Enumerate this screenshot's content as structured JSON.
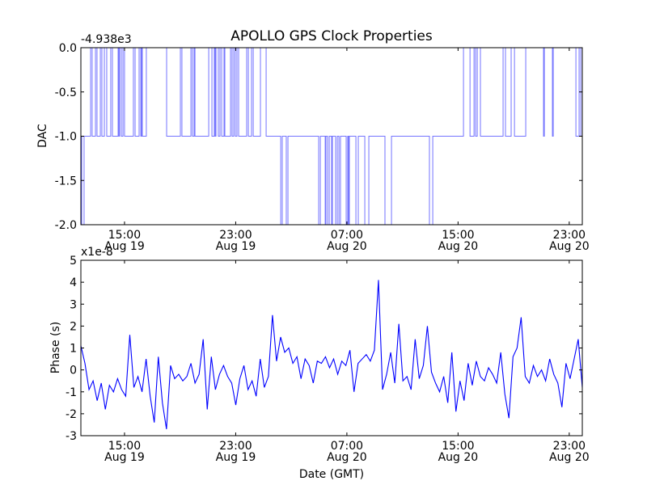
{
  "chart_data": [
    {
      "type": "line",
      "title": "APOLLO GPS Clock Properties",
      "ylabel": "DAC",
      "xlabel": "",
      "offset_label": "-4.938e3",
      "x_units": "hours since 00:00 Aug 19 (GMT)",
      "xlim": [
        11.86,
        47.94
      ],
      "ylim": [
        -2.0,
        0.0
      ],
      "yticks": [
        0.0,
        -0.5,
        -1.0,
        -1.5,
        -2.0
      ],
      "ytick_labels": [
        "0.0",
        "-0.5",
        "-1.0",
        "-1.5",
        "-2.0"
      ],
      "xticks": [
        15,
        23,
        31,
        39,
        47
      ],
      "xtick_labels": [
        [
          "15:00",
          "Aug 19"
        ],
        [
          "23:00",
          "Aug 19"
        ],
        [
          "07:00",
          "Aug 20"
        ],
        [
          "15:00",
          "Aug 20"
        ],
        [
          "23:00",
          "Aug 20"
        ]
      ],
      "color": "#0000ff",
      "step_series": [
        [
          11.86,
          -1
        ],
        [
          11.92,
          -2
        ],
        [
          12.09,
          -1
        ],
        [
          12.56,
          0
        ],
        [
          12.67,
          -1
        ],
        [
          12.91,
          0
        ],
        [
          13.02,
          -1
        ],
        [
          13.26,
          0
        ],
        [
          13.37,
          -1
        ],
        [
          13.55,
          0
        ],
        [
          13.72,
          -1
        ],
        [
          14.01,
          0
        ],
        [
          14.13,
          -1
        ],
        [
          14.54,
          0
        ],
        [
          14.6,
          -1
        ],
        [
          14.65,
          0
        ],
        [
          14.77,
          -1
        ],
        [
          14.89,
          0
        ],
        [
          15.0,
          -1
        ],
        [
          15.64,
          0
        ],
        [
          15.76,
          -1
        ],
        [
          16.05,
          0
        ],
        [
          16.17,
          -1
        ],
        [
          16.23,
          0
        ],
        [
          16.28,
          -1
        ],
        [
          16.57,
          0
        ],
        [
          18.03,
          -1
        ],
        [
          19.02,
          0
        ],
        [
          19.13,
          -1
        ],
        [
          19.78,
          0
        ],
        [
          19.89,
          -1
        ],
        [
          20.01,
          0
        ],
        [
          20.07,
          -1
        ],
        [
          21.06,
          0
        ],
        [
          21.29,
          -1
        ],
        [
          21.46,
          0
        ],
        [
          21.52,
          -1
        ],
        [
          21.58,
          0
        ],
        [
          21.75,
          -1
        ],
        [
          21.87,
          0
        ],
        [
          21.99,
          -1
        ],
        [
          22.16,
          0
        ],
        [
          22.22,
          -1
        ],
        [
          22.63,
          0
        ],
        [
          22.74,
          -1
        ],
        [
          22.86,
          0
        ],
        [
          22.97,
          -1
        ],
        [
          23.09,
          0
        ],
        [
          23.21,
          -1
        ],
        [
          23.79,
          0
        ],
        [
          23.91,
          -1
        ],
        [
          24.14,
          0
        ],
        [
          24.26,
          -1
        ],
        [
          24.78,
          0
        ],
        [
          25.19,
          -1
        ],
        [
          26.24,
          -2
        ],
        [
          26.35,
          -1
        ],
        [
          26.64,
          -2
        ],
        [
          26.76,
          -1
        ],
        [
          28.97,
          -2
        ],
        [
          29.09,
          -1
        ],
        [
          29.44,
          -2
        ],
        [
          29.49,
          -1
        ],
        [
          29.61,
          -2
        ],
        [
          29.73,
          -1
        ],
        [
          29.9,
          -2
        ],
        [
          29.96,
          -1
        ],
        [
          30.19,
          -2
        ],
        [
          30.31,
          -1
        ],
        [
          30.43,
          -2
        ],
        [
          30.54,
          -1
        ],
        [
          30.95,
          -2
        ],
        [
          31.06,
          -1
        ],
        [
          31.12,
          -2
        ],
        [
          31.18,
          -1
        ],
        [
          31.65,
          -2
        ],
        [
          31.82,
          -1
        ],
        [
          32.29,
          -2
        ],
        [
          32.58,
          -1
        ],
        [
          33.74,
          -2
        ],
        [
          34.21,
          -1
        ],
        [
          36.94,
          -2
        ],
        [
          37.18,
          -1
        ],
        [
          39.39,
          0
        ],
        [
          39.86,
          -1
        ],
        [
          40.15,
          0
        ],
        [
          40.26,
          -1
        ],
        [
          40.38,
          0
        ],
        [
          40.61,
          -1
        ],
        [
          42.24,
          0
        ],
        [
          42.41,
          -1
        ],
        [
          42.82,
          0
        ],
        [
          43.06,
          -1
        ],
        [
          43.87,
          0
        ],
        [
          45.15,
          -1
        ],
        [
          45.21,
          0
        ],
        [
          45.79,
          -1
        ],
        [
          45.85,
          0
        ],
        [
          47.48,
          -1
        ],
        [
          47.71,
          0
        ],
        [
          47.83,
          -1
        ],
        [
          47.94,
          -1
        ]
      ]
    },
    {
      "type": "line",
      "title": "",
      "ylabel": "Phase (s)",
      "xlabel": "Date (GMT)",
      "offset_label": "x1e-8",
      "x_units": "hours since 00:00 Aug 19 (GMT)",
      "xlim": [
        11.86,
        47.94
      ],
      "ylim": [
        -3,
        5
      ],
      "yticks": [
        5,
        4,
        3,
        2,
        1,
        0,
        -1,
        -2,
        -3
      ],
      "ytick_labels": [
        "5",
        "4",
        "3",
        "2",
        "1",
        "0",
        "-1",
        "-2",
        "-3"
      ],
      "xticks": [
        15,
        23,
        31,
        39,
        47
      ],
      "xtick_labels": [
        [
          "15:00",
          "Aug 19"
        ],
        [
          "23:00",
          "Aug 19"
        ],
        [
          "07:00",
          "Aug 20"
        ],
        [
          "15:00",
          "Aug 20"
        ],
        [
          "23:00",
          "Aug 20"
        ]
      ],
      "color": "#0000ff",
      "series_x_range": [
        11.86,
        47.94
      ],
      "values": [
        1.1,
        0.3,
        -0.9,
        -0.5,
        -1.4,
        -0.6,
        -1.8,
        -0.7,
        -1.0,
        -0.4,
        -0.9,
        -1.2,
        1.6,
        -0.8,
        -0.3,
        -1.0,
        0.5,
        -1.2,
        -2.4,
        0.6,
        -1.5,
        -2.7,
        0.2,
        -0.4,
        -0.2,
        -0.5,
        -0.3,
        0.3,
        -0.6,
        -0.2,
        1.4,
        -1.8,
        0.6,
        -0.9,
        -0.2,
        0.2,
        -0.3,
        -0.6,
        -1.6,
        -0.4,
        0.2,
        -0.9,
        -0.5,
        -1.2,
        0.5,
        -0.8,
        -0.3,
        2.5,
        0.4,
        1.5,
        0.8,
        1.0,
        0.3,
        0.6,
        -0.4,
        0.5,
        0.2,
        -0.6,
        0.4,
        0.3,
        0.6,
        0.1,
        0.5,
        -0.2,
        0.4,
        0.2,
        0.9,
        -1.0,
        0.3,
        0.5,
        0.7,
        0.4,
        0.9,
        4.1,
        -0.9,
        -0.2,
        0.8,
        -0.6,
        2.1,
        -0.5,
        -0.3,
        -0.9,
        1.4,
        -0.4,
        0.2,
        2.0,
        -0.1,
        -0.6,
        -1.0,
        -0.3,
        -1.5,
        0.8,
        -1.9,
        -0.5,
        -1.4,
        0.3,
        -0.7,
        0.4,
        -0.3,
        -0.5,
        0.1,
        -0.2,
        -0.6,
        0.8,
        -1.1,
        -2.2,
        0.6,
        1.0,
        2.4,
        -0.3,
        -0.6,
        0.2,
        -0.3,
        0.0,
        -0.5,
        0.5,
        -0.2,
        -0.6,
        -1.7,
        0.3,
        -0.4,
        0.5,
        1.4,
        -0.8
      ]
    }
  ]
}
